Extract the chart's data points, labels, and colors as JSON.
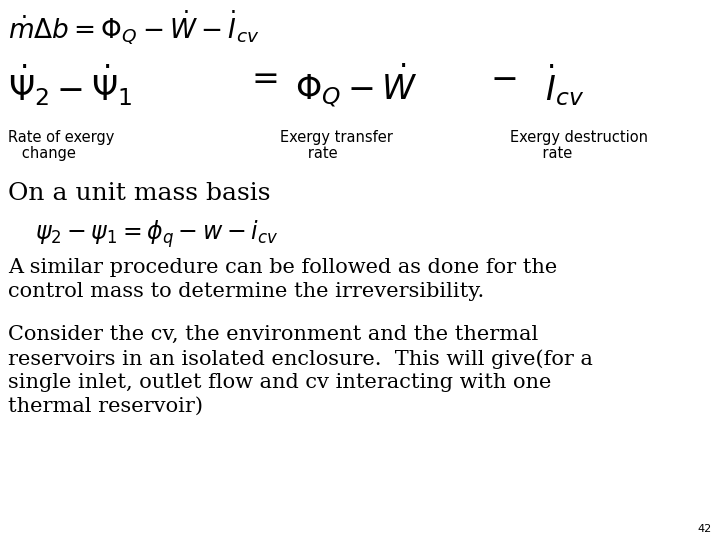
{
  "background_color": "#ffffff",
  "page_number": "42",
  "eq1": "$\\dot{m}\\Delta b = \\Phi_{Q} - \\dot{W} - \\dot{I}_{cv}$",
  "eq2_left": "$\\dot{\\Psi}_{2} - \\dot{\\Psi}_{1}$",
  "eq2_eq": "$=$",
  "eq2_mid": "$\\Phi_{Q} - \\dot{W}$",
  "eq2_dash": "$-$",
  "eq2_right": "$\\dot{I}_{cv}$",
  "label1_line1": "Rate of exergy",
  "label1_line2": "   change",
  "label2_line1": "Exergy transfer",
  "label2_line2": "      rate",
  "label3_line1": "Exergy destruction",
  "label3_line2": "       rate",
  "text_unit_mass": "On a unit mass basis",
  "eq3_text": "$\\psi_2 - \\psi_1 = \\phi_q - w - i_{cv}$",
  "text2_line1": "A similar procedure can be followed as done for the",
  "text2_line2": "control mass to determine the irreversibility.",
  "text3_line1": "Consider the cv, the environment and the thermal",
  "text3_line2": "reservoirs in an isolated enclosure.  This will give(for a",
  "text3_line3": "single inlet, outlet flow and cv interacting with one",
  "text3_line4": "thermal reservoir)",
  "label_fontsize": 10.5,
  "eq1_fontsize": 19,
  "eq2_fontsize": 24,
  "text_fontsize": 15,
  "unit_mass_fontsize": 18,
  "eq3_fontsize": 17,
  "page_num_fontsize": 8
}
